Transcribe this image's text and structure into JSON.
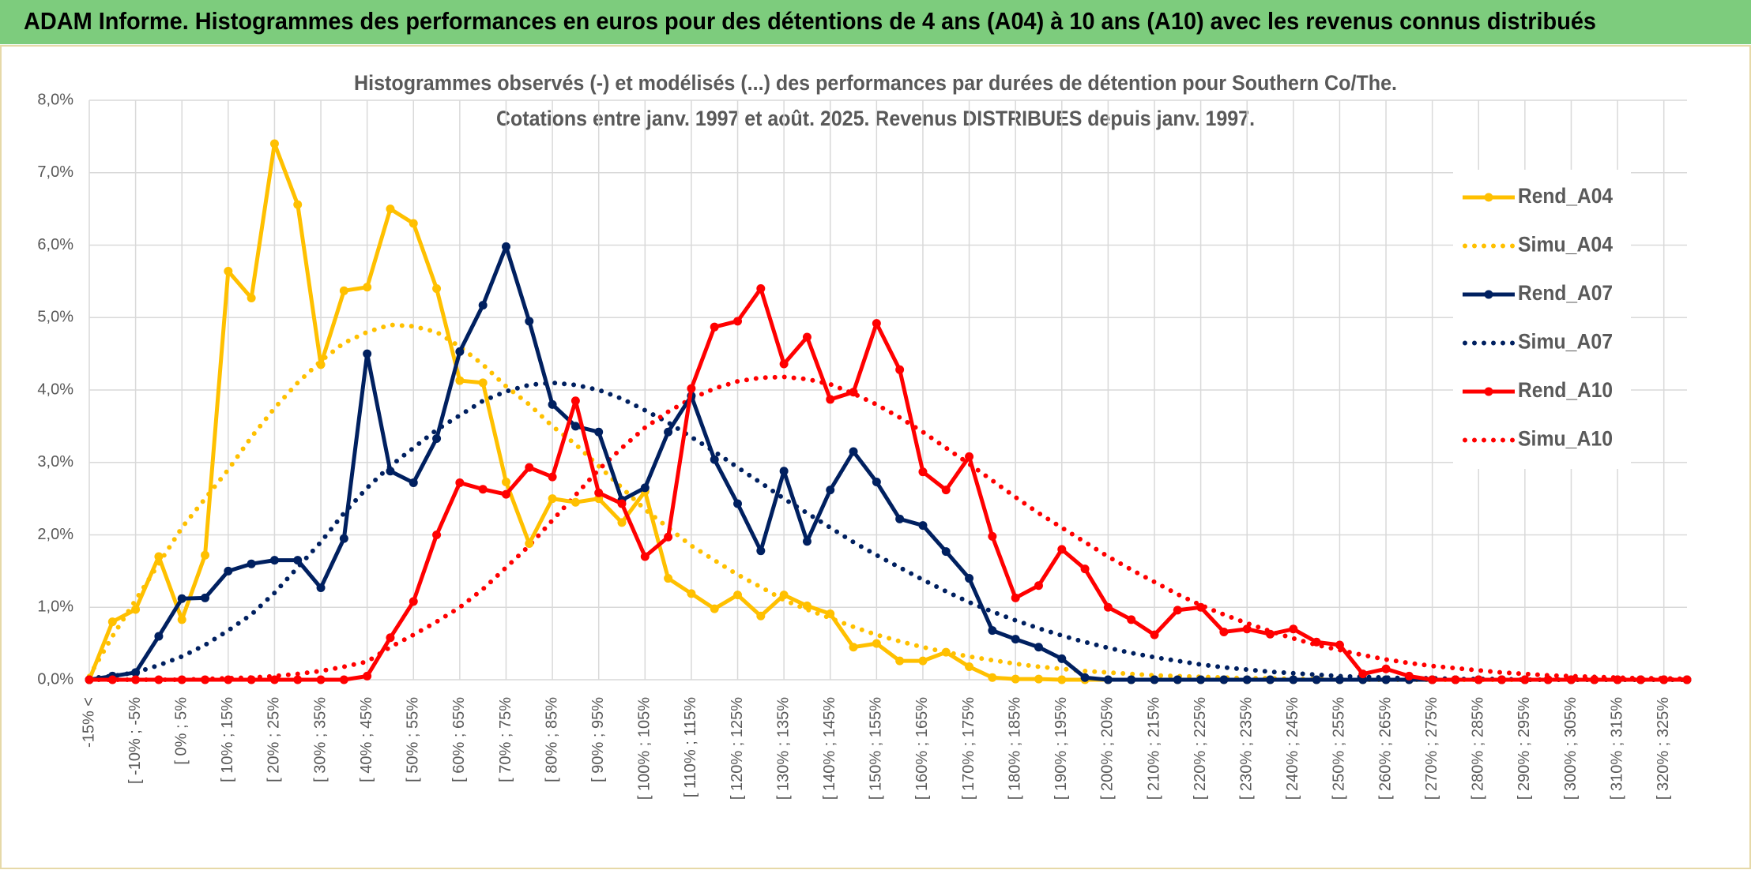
{
  "header": "ADAM Informe. Histogrammes des performances en euros pour des détentions de 4 ans (A04) à 10 ans (A10) avec les revenus connus distribués",
  "chart_data": {
    "type": "line",
    "title": "Histogrammes observés (-) et modélisés (...) des performances par durées de détention pour Southern Co/The.",
    "subtitle": "Cotations entre janv. 1997 et août. 2025. Revenus DISTRIBUES depuis janv. 1997.",
    "categories": [
      "-15% <",
      null,
      "[ -10% ; -5%",
      null,
      "[ 0% ; 5%",
      null,
      "[ 10% ; 15%",
      null,
      "[ 20% ; 25%",
      null,
      "[ 30% ; 35%",
      null,
      "[ 40% ; 45%",
      null,
      "[ 50% ; 55%",
      null,
      "[ 60% ; 65%",
      null,
      "[ 70% ; 75%",
      null,
      "[ 80% ; 85%",
      null,
      "[ 90% ; 95%",
      null,
      "[ 100% ; 105%",
      null,
      "[ 110% ; 115%",
      null,
      "[ 120% ; 125%",
      null,
      "[ 130% ; 135%",
      null,
      "[ 140% ; 145%",
      null,
      "[ 150% ; 155%",
      null,
      "[ 160% ; 165%",
      null,
      "[ 170% ; 175%",
      null,
      "[ 180% ; 185%",
      null,
      "[ 190% ; 195%",
      null,
      "[ 200% ; 205%",
      null,
      "[ 210% ; 215%",
      null,
      "[ 220% ; 225%",
      null,
      "[ 230% ; 235%",
      null,
      "[ 240% ; 245%",
      null,
      "[ 250% ; 255%",
      null,
      "[ 260% ; 265%",
      null,
      "[ 270% ; 275%",
      null,
      "[ 280% ; 285%",
      null,
      "[ 290% ; 295%",
      null,
      "[ 300% ; 305%",
      null,
      "[ 310% ; 315%",
      null,
      "[ 320% ; 325%",
      null
    ],
    "series": [
      {
        "name": "Rend_A04",
        "color": "#FFC000",
        "style": "solid",
        "markers": true,
        "values": [
          0,
          0.8,
          0.97,
          1.7,
          0.83,
          1.72,
          5.64,
          5.27,
          7.4,
          6.56,
          4.35,
          5.37,
          5.42,
          6.5,
          6.3,
          5.4,
          4.13,
          4.1,
          2.73,
          1.88,
          2.5,
          2.45,
          2.5,
          2.17,
          2.6,
          1.4,
          1.19,
          0.98,
          1.17,
          0.88,
          1.17,
          1.02,
          0.91,
          0.45,
          0.5,
          0.26,
          0.26,
          0.38,
          0.18,
          0.03,
          0.01,
          0.01,
          0,
          0,
          0,
          0,
          0,
          0,
          0,
          0,
          0,
          0,
          0,
          0,
          0,
          0,
          0,
          0,
          0,
          0,
          0,
          0,
          0,
          0,
          0,
          0,
          0,
          0,
          0,
          0
        ]
      },
      {
        "name": "Simu_A04",
        "color": "#FFC000",
        "style": "dotted",
        "markers": false,
        "values": [
          0.05,
          0.6,
          1.1,
          1.6,
          2.1,
          2.5,
          2.9,
          3.35,
          3.75,
          4.1,
          4.4,
          4.65,
          4.8,
          4.9,
          4.88,
          4.8,
          4.6,
          4.35,
          4.05,
          3.8,
          3.5,
          3.25,
          2.95,
          2.65,
          2.35,
          2.1,
          1.85,
          1.65,
          1.45,
          1.28,
          1.1,
          0.97,
          0.85,
          0.73,
          0.62,
          0.53,
          0.45,
          0.38,
          0.32,
          0.27,
          0.22,
          0.18,
          0.15,
          0.12,
          0.1,
          0.08,
          0.06,
          0.05,
          0.04,
          0.03,
          0.02,
          0.02,
          0.01,
          0.01,
          0.01,
          0,
          0,
          0,
          0,
          0,
          0,
          0,
          0,
          0,
          0,
          0,
          0,
          0,
          0,
          0
        ]
      },
      {
        "name": "Rend_A07",
        "color": "#002060",
        "style": "solid",
        "markers": true,
        "values": [
          0,
          0.05,
          0.1,
          0.6,
          1.12,
          1.13,
          1.5,
          1.6,
          1.65,
          1.65,
          1.27,
          1.95,
          4.5,
          2.88,
          2.72,
          3.33,
          4.53,
          5.17,
          5.98,
          4.95,
          3.8,
          3.5,
          3.42,
          2.48,
          2.65,
          3.42,
          3.92,
          3.04,
          2.43,
          1.78,
          2.88,
          1.91,
          2.62,
          3.15,
          2.73,
          2.22,
          2.13,
          1.77,
          1.4,
          0.68,
          0.56,
          0.45,
          0.29,
          0.03,
          0,
          0,
          0,
          0,
          0,
          0,
          0,
          0,
          0,
          0,
          0,
          0,
          0,
          0,
          0,
          0,
          0,
          0,
          0,
          0,
          0,
          0,
          0,
          0,
          0,
          0
        ]
      },
      {
        "name": "Simu_A07",
        "color": "#002060",
        "style": "dotted",
        "markers": false,
        "values": [
          0.02,
          0.05,
          0.1,
          0.2,
          0.32,
          0.48,
          0.68,
          0.9,
          1.2,
          1.55,
          1.9,
          2.3,
          2.65,
          2.95,
          3.2,
          3.45,
          3.65,
          3.85,
          3.98,
          4.07,
          4.1,
          4.07,
          4.0,
          3.88,
          3.72,
          3.55,
          3.35,
          3.15,
          2.93,
          2.72,
          2.5,
          2.3,
          2.1,
          1.9,
          1.72,
          1.55,
          1.38,
          1.22,
          1.07,
          0.94,
          0.82,
          0.71,
          0.61,
          0.52,
          0.44,
          0.37,
          0.31,
          0.26,
          0.21,
          0.17,
          0.14,
          0.11,
          0.09,
          0.07,
          0.05,
          0.04,
          0.03,
          0.02,
          0.02,
          0.01,
          0.01,
          0.01,
          0,
          0,
          0,
          0,
          0,
          0,
          0,
          0
        ]
      },
      {
        "name": "Rend_A10",
        "color": "#FF0000",
        "style": "solid",
        "markers": true,
        "values": [
          0,
          0,
          0,
          0,
          0,
          0,
          0,
          0,
          0,
          0,
          0,
          0,
          0.05,
          0.58,
          1.08,
          2.0,
          2.72,
          2.63,
          2.56,
          2.93,
          2.8,
          3.85,
          2.58,
          2.43,
          1.7,
          1.97,
          4.02,
          4.87,
          4.95,
          5.4,
          4.36,
          4.73,
          3.87,
          3.97,
          4.92,
          4.28,
          2.87,
          2.62,
          3.08,
          1.98,
          1.13,
          1.3,
          1.8,
          1.53,
          1.0,
          0.83,
          0.62,
          0.96,
          1.0,
          0.66,
          0.7,
          0.63,
          0.7,
          0.52,
          0.48,
          0.08,
          0.15,
          0.05,
          0,
          0,
          0,
          0,
          0,
          0,
          0,
          0,
          0,
          0,
          0,
          0
        ]
      },
      {
        "name": "Simu_A10",
        "color": "#FF0000",
        "style": "dotted",
        "markers": false,
        "values": [
          0,
          0,
          0,
          0,
          0,
          0.01,
          0.02,
          0.03,
          0.05,
          0.08,
          0.12,
          0.18,
          0.25,
          0.45,
          0.62,
          0.8,
          1.0,
          1.25,
          1.55,
          1.85,
          2.2,
          2.55,
          2.9,
          3.2,
          3.48,
          3.7,
          3.88,
          4.02,
          4.12,
          4.17,
          4.18,
          4.15,
          4.08,
          3.95,
          3.8,
          3.62,
          3.42,
          3.2,
          2.98,
          2.75,
          2.52,
          2.3,
          2.1,
          1.9,
          1.7,
          1.52,
          1.35,
          1.18,
          1.03,
          0.9,
          0.78,
          0.67,
          0.57,
          0.48,
          0.41,
          0.34,
          0.28,
          0.23,
          0.19,
          0.16,
          0.13,
          0.1,
          0.08,
          0.06,
          0.05,
          0.04,
          0.03,
          0.02,
          0.02,
          0.01
        ]
      }
    ],
    "ylim": [
      0,
      8
    ],
    "yticks": [
      {
        "value": 0,
        "label": "0,0%"
      },
      {
        "value": 1,
        "label": "1,0%"
      },
      {
        "value": 2,
        "label": "2,0%"
      },
      {
        "value": 3,
        "label": "3,0%"
      },
      {
        "value": 4,
        "label": "4,0%"
      },
      {
        "value": 5,
        "label": "5,0%"
      },
      {
        "value": 6,
        "label": "6,0%"
      },
      {
        "value": 7,
        "label": "7,0%"
      },
      {
        "value": 8,
        "label": "8,0%"
      }
    ],
    "grid": true,
    "legend": "right"
  }
}
